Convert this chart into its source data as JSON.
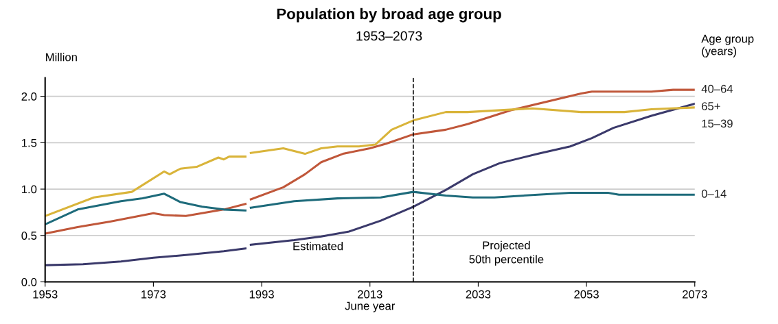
{
  "chart_data": {
    "type": "line",
    "title": "Population by broad age group",
    "subtitle": "1953–2073",
    "xlabel": "June year",
    "ylabel": "Million",
    "legend_title": "Age group\n(years)",
    "xlim": [
      1953,
      2073
    ],
    "xticks": [
      1953,
      1973,
      1993,
      2013,
      2033,
      2053,
      2073
    ],
    "ylim": [
      0,
      2.2
    ],
    "yticks": [
      {
        "value": 0,
        "label": "0.0"
      },
      {
        "value": 0.5,
        "label": "0.5"
      },
      {
        "value": 1,
        "label": "1.0"
      },
      {
        "value": 1.5,
        "label": "1.5"
      },
      {
        "value": 2,
        "label": "2.0"
      }
    ],
    "grid": "y",
    "legend": "right",
    "marker": "none",
    "line_style": "solid",
    "ref_lines": [
      {
        "axis": "x",
        "value": 2021,
        "color": "#000000",
        "line_style": "dashed"
      }
    ],
    "annotations": [
      "Estimated",
      "Projected\n50th percentile"
    ],
    "series": [
      {
        "name": "40–64",
        "color": "#c0573a",
        "x": [
          1953,
          1959,
          1965,
          1973,
          1975,
          1979,
          1986,
          1990,
          1990.5,
          1991,
          1997,
          2001,
          2004,
          2008,
          2013,
          2016,
          2021,
          2027,
          2031,
          2039,
          2052,
          2054,
          2065,
          2069,
          2073
        ],
        "values": [
          0.52,
          0.59,
          0.65,
          0.74,
          0.72,
          0.71,
          0.78,
          0.84,
          null,
          0.89,
          1.02,
          1.16,
          1.29,
          1.38,
          1.44,
          1.49,
          1.59,
          1.64,
          1.7,
          1.85,
          2.03,
          2.05,
          2.05,
          2.07,
          2.07
        ]
      },
      {
        "name": "65+",
        "color": "#3b3a6b",
        "x": [
          1953,
          1960,
          1967,
          1973,
          1979,
          1986,
          1990,
          1990.5,
          1991,
          1999,
          2004,
          2009,
          2015,
          2021,
          2027,
          2032,
          2037,
          2044,
          2050,
          2054,
          2058,
          2065,
          2073
        ],
        "values": [
          0.18,
          0.19,
          0.22,
          0.26,
          0.29,
          0.33,
          0.36,
          null,
          0.4,
          0.45,
          0.49,
          0.54,
          0.66,
          0.81,
          0.99,
          1.16,
          1.28,
          1.38,
          1.46,
          1.55,
          1.66,
          1.79,
          1.92
        ]
      },
      {
        "name": "15–39",
        "color": "#d9b43a",
        "x": [
          1953,
          1962,
          1969,
          1975,
          1976,
          1978,
          1981,
          1985,
          1986,
          1987,
          1990,
          1990.5,
          1991,
          1997,
          2001,
          2004,
          2007,
          2011,
          2014,
          2017,
          2021,
          2027,
          2031,
          2043,
          2052,
          2060,
          2065,
          2073
        ],
        "values": [
          0.71,
          0.91,
          0.97,
          1.19,
          1.16,
          1.22,
          1.24,
          1.34,
          1.32,
          1.35,
          1.35,
          null,
          1.39,
          1.44,
          1.38,
          1.44,
          1.46,
          1.46,
          1.48,
          1.64,
          1.74,
          1.83,
          1.83,
          1.87,
          1.83,
          1.83,
          1.86,
          1.88
        ]
      },
      {
        "name": "0–14",
        "color": "#1e6b7b",
        "x": [
          1953,
          1959,
          1967,
          1971,
          1975,
          1978,
          1982,
          1986,
          1990,
          1990.5,
          1991,
          1999,
          2007,
          2015,
          2021,
          2027,
          2032,
          2036,
          2044,
          2050,
          2057,
          2059,
          2073
        ],
        "values": [
          0.62,
          0.78,
          0.87,
          0.9,
          0.95,
          0.86,
          0.81,
          0.78,
          0.77,
          null,
          0.8,
          0.87,
          0.9,
          0.91,
          0.97,
          0.93,
          0.91,
          0.91,
          0.94,
          0.96,
          0.96,
          0.94,
          0.94
        ]
      }
    ]
  }
}
